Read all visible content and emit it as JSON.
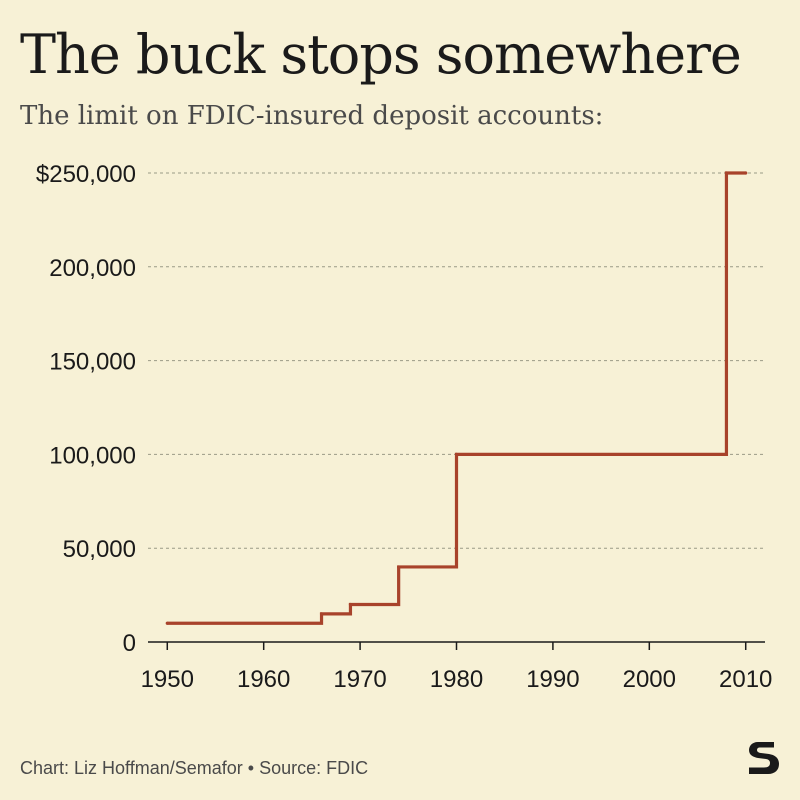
{
  "chart_data": {
    "type": "line",
    "step": true,
    "title": "The buck stops somewhere",
    "subtitle": "The limit on FDIC-insured deposit accounts:",
    "xlim": [
      1948,
      2012
    ],
    "ylim": [
      0,
      250000
    ],
    "x_ticks": [
      1950,
      1960,
      1970,
      1980,
      1990,
      2000,
      2010
    ],
    "x_tick_labels": [
      "1950",
      "1960",
      "1970",
      "1980",
      "1990",
      "2000",
      "2010"
    ],
    "y_ticks": [
      0,
      50000,
      100000,
      150000,
      200000,
      250000
    ],
    "y_tick_labels": [
      "0",
      "50,000",
      "100,000",
      "150,000",
      "200,000",
      "$250,000"
    ],
    "grid": "horizontal dashed",
    "color": "#a8432b",
    "series": [
      {
        "x": [
          1950,
          1966,
          1969,
          1974,
          1980,
          2008,
          2010
        ],
        "y": [
          10000,
          15000,
          20000,
          40000,
          100000,
          250000,
          250000
        ]
      }
    ]
  },
  "footer": "Chart: Liz Hoffman/Semafor • Source: FDIC",
  "logo_letter": "S"
}
